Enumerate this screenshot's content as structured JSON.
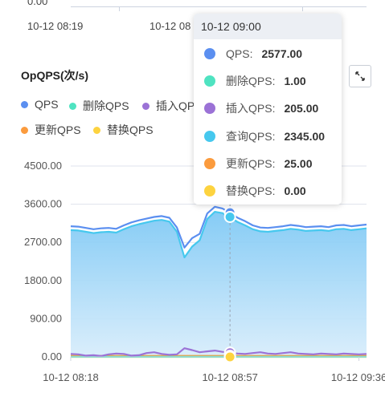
{
  "top_partial": {
    "value_label": "0.00",
    "time_labels": [
      "10-12 08:19",
      "10-12 08"
    ]
  },
  "title": "OpQPS(次/s)",
  "colors": {
    "qps": "#5b8ff0",
    "delete": "#4fe3c1",
    "insert": "#9b72d6",
    "query": "#46c8ee",
    "update": "#fb9b3d",
    "replace": "#fdd33f",
    "grid": "#dfe3ec",
    "axis": "#cfd5df"
  },
  "legend": [
    {
      "label": "QPS",
      "color": "#5b8ff0"
    },
    {
      "label": "删除QPS",
      "color": "#4fe3c1"
    },
    {
      "label": "插入QPS",
      "color": "#9b72d6"
    },
    {
      "label": "更新QPS",
      "color": "#fb9b3d"
    },
    {
      "label": "替换QPS",
      "color": "#fdd33f"
    }
  ],
  "tooltip": {
    "time": "10-12 09:00",
    "rows": [
      {
        "name": "QPS:",
        "value": "2577.00",
        "color": "#5b8ff0"
      },
      {
        "name": "删除QPS:",
        "value": "1.00",
        "color": "#4fe3c1"
      },
      {
        "name": "插入QPS:",
        "value": "205.00",
        "color": "#9b72d6"
      },
      {
        "name": "查询QPS:",
        "value": "2345.00",
        "color": "#46c8ee"
      },
      {
        "name": "更新QPS:",
        "value": "25.00",
        "color": "#fb9b3d"
      },
      {
        "name": "替换QPS:",
        "value": "0.00",
        "color": "#fdd33f"
      }
    ]
  },
  "chart_data": {
    "type": "area",
    "title": "OpQPS(次/s)",
    "ylim": [
      0,
      4500
    ],
    "y_ticks": [
      "4500.00",
      "3600.00",
      "2700.00",
      "1800.00",
      "900.00",
      "0.00"
    ],
    "x_tick_labels": [
      "10-12 08:18",
      "10-12 08:57",
      "10-12 09:36"
    ],
    "highlight_index": 21,
    "series": [
      {
        "name": "QPS",
        "color": "#5b8ff0",
        "fill": false,
        "values": [
          3080,
          3070,
          3040,
          3010,
          3030,
          3040,
          3020,
          3100,
          3170,
          3220,
          3260,
          3300,
          3320,
          3280,
          3050,
          2577,
          2800,
          2900,
          3380,
          3540,
          3500,
          3400,
          3280,
          3200,
          3100,
          3050,
          3040,
          3060,
          3080,
          3110,
          3090,
          3060,
          3070,
          3080,
          3060,
          3100,
          3110,
          3080,
          3100,
          3120
        ]
      },
      {
        "name": "查询QPS",
        "color": "#46c8ee",
        "fill": true,
        "values": [
          2990,
          2980,
          2950,
          2920,
          2940,
          2950,
          2930,
          3010,
          3080,
          3130,
          3170,
          3210,
          3230,
          3190,
          2950,
          2345,
          2600,
          2750,
          3250,
          3420,
          3390,
          3300,
          3180,
          3100,
          3010,
          2960,
          2950,
          2970,
          2990,
          3020,
          3000,
          2970,
          2980,
          2990,
          2970,
          3010,
          3020,
          2990,
          3010,
          3030
        ]
      },
      {
        "name": "删除QPS",
        "color": "#4fe3c1",
        "fill": false,
        "values": [
          1,
          1,
          1,
          1,
          1,
          1,
          1,
          1,
          1,
          1,
          1,
          1,
          1,
          1,
          1,
          1,
          1,
          1,
          1,
          1,
          1,
          1,
          1,
          1,
          1,
          1,
          1,
          1,
          1,
          1,
          1,
          1,
          1,
          1,
          1,
          1,
          1,
          1,
          1,
          1
        ]
      },
      {
        "name": "插入QPS",
        "color": "#9b72d6",
        "fill": false,
        "values": [
          70,
          60,
          30,
          40,
          20,
          60,
          80,
          70,
          30,
          40,
          90,
          110,
          70,
          50,
          60,
          205,
          160,
          110,
          130,
          150,
          120,
          100,
          80,
          70,
          90,
          110,
          80,
          70,
          90,
          110,
          80,
          70,
          60,
          80,
          70,
          60,
          80,
          70,
          60,
          70
        ]
      },
      {
        "name": "更新QPS",
        "color": "#fb9b3d",
        "fill": false,
        "values": [
          25,
          25,
          25,
          25,
          25,
          25,
          25,
          25,
          25,
          25,
          25,
          25,
          25,
          25,
          25,
          25,
          25,
          25,
          25,
          25,
          25,
          25,
          25,
          25,
          25,
          25,
          25,
          25,
          25,
          25,
          25,
          25,
          25,
          25,
          25,
          25,
          25,
          25,
          25,
          25
        ]
      },
      {
        "name": "替换QPS",
        "color": "#fdd33f",
        "fill": false,
        "values": [
          0,
          0,
          0,
          0,
          0,
          0,
          0,
          0,
          0,
          0,
          0,
          0,
          0,
          0,
          0,
          0,
          0,
          0,
          0,
          0,
          0,
          0,
          0,
          0,
          0,
          0,
          0,
          0,
          0,
          0,
          0,
          0,
          0,
          0,
          0,
          0,
          0,
          0,
          0,
          0
        ]
      }
    ]
  }
}
